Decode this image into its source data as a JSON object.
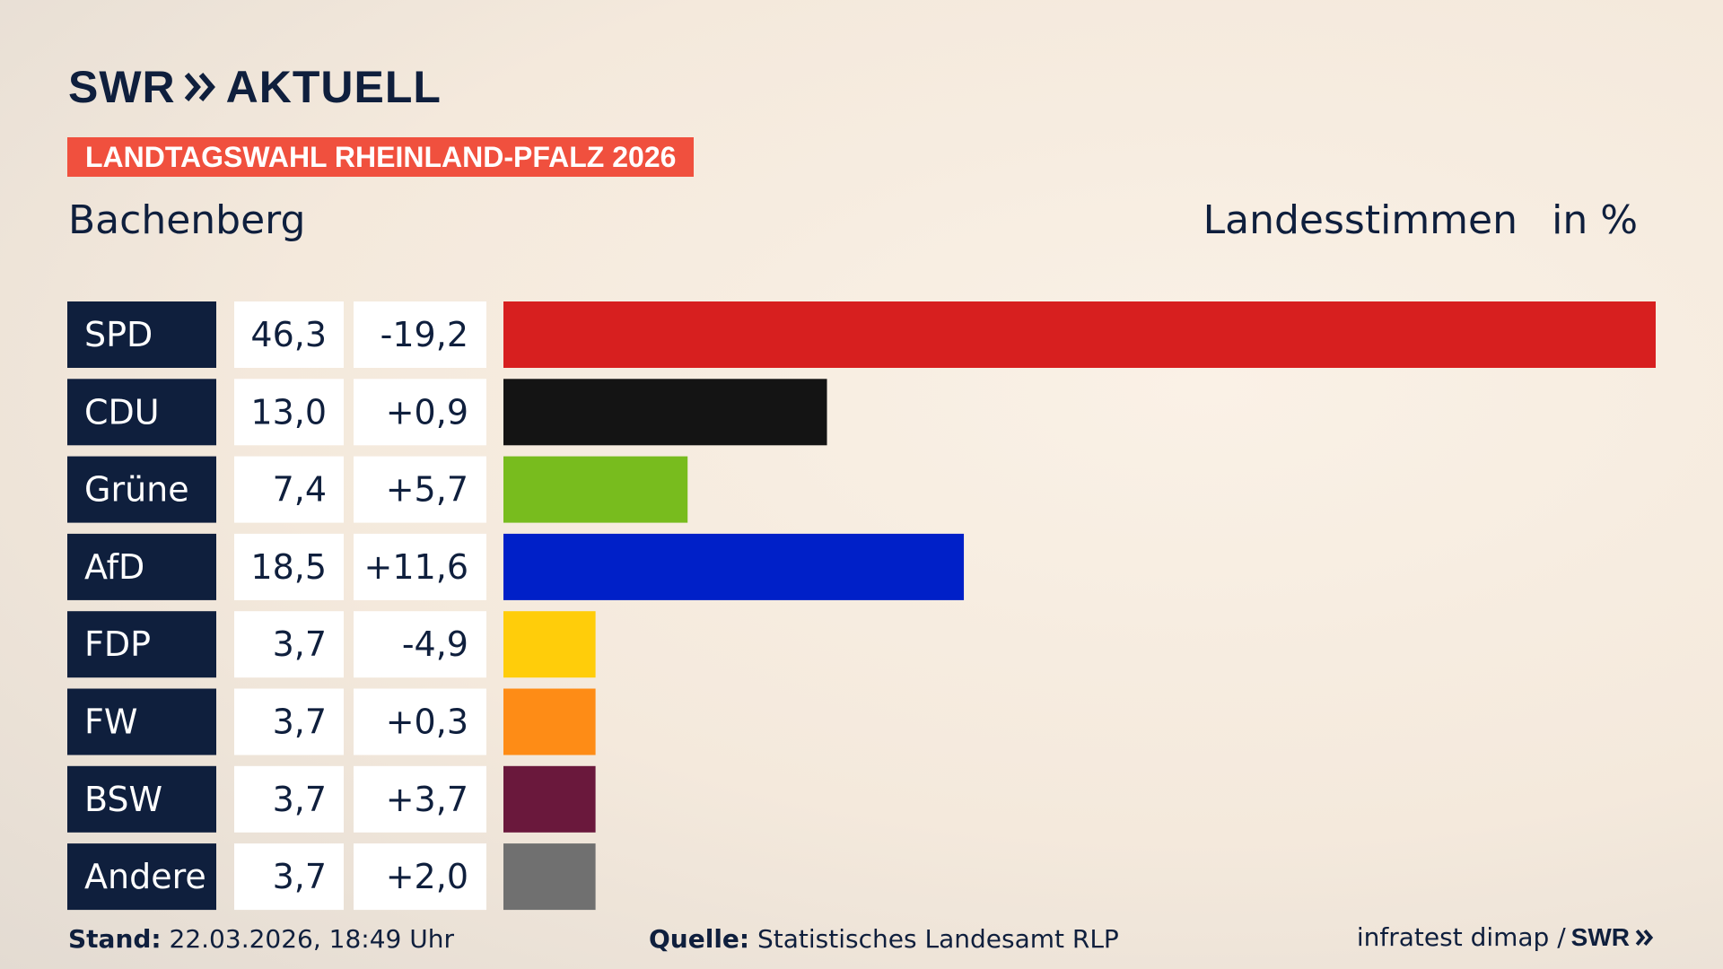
{
  "header": {
    "logo_text": "SWR",
    "logo_suffix": "AKTUELL",
    "banner": "LANDTAGSWAHL RHEINLAND-PFALZ 2026",
    "place": "Bachenberg",
    "measure": "Landesstimmen",
    "unit": "in %"
  },
  "chart_data": {
    "type": "bar",
    "orientation": "horizontal",
    "categories": [
      "SPD",
      "CDU",
      "Grüne",
      "AfD",
      "FDP",
      "FW",
      "BSW",
      "Andere"
    ],
    "values": [
      46.3,
      13.0,
      7.4,
      18.5,
      3.7,
      3.7,
      3.7,
      3.7
    ],
    "value_labels": [
      "46,3",
      "13,0",
      "7,4",
      "18,5",
      "3,7",
      "3,7",
      "3,7",
      "3,7"
    ],
    "changes": [
      -19.2,
      0.9,
      5.7,
      11.6,
      -4.9,
      0.3,
      3.7,
      2.0
    ],
    "change_labels": [
      "-19,2",
      "+0,9",
      "+5,7",
      "+11,6",
      "-4,9",
      "+0,3",
      "+3,7",
      "+2,0"
    ],
    "colors": [
      "#d71f1f",
      "#141414",
      "#78bc1e",
      "#0020c8",
      "#ffcd0a",
      "#fe8c16",
      "#6a183c",
      "#707070"
    ],
    "xlim": [
      0,
      46.3
    ],
    "grid": false,
    "legend": "none"
  },
  "footer": {
    "stand_label": "Stand:",
    "stand_value": "22.03.2026, 18:49 Uhr",
    "quelle_label": "Quelle:",
    "quelle_value": "Statistisches Landesamt RLP",
    "credit": "infratest dimap /",
    "credit_logo": "SWR"
  }
}
